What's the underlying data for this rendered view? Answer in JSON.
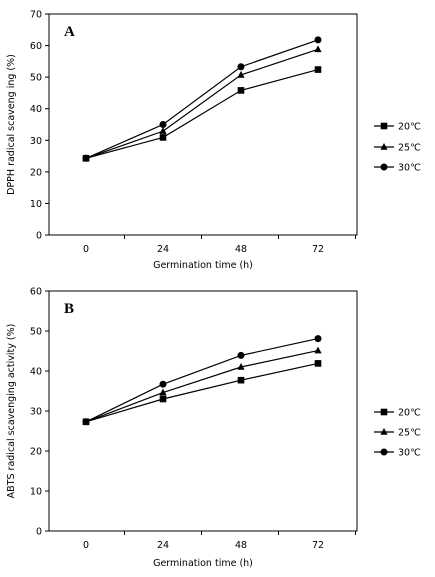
{
  "chart_data": [
    {
      "type": "line",
      "panel_label": "A",
      "xlabel": "Germination time (h)",
      "ylabel": "DPPH radical scaveng ing (%)",
      "x": [
        0,
        24,
        48,
        72
      ],
      "x_tick_labels": [
        "0",
        "24",
        "48",
        "72"
      ],
      "ylim": [
        0,
        70
      ],
      "y_ticks": [
        0,
        10,
        20,
        30,
        40,
        50,
        60,
        70
      ],
      "grid": false,
      "legend_placement": "right",
      "series": [
        {
          "name": "20℃",
          "marker": "square",
          "values": [
            24.3,
            30.9,
            45.8,
            52.4
          ]
        },
        {
          "name": "25℃",
          "marker": "triangle",
          "values": [
            24.3,
            32.9,
            50.7,
            58.8
          ]
        },
        {
          "name": "30℃",
          "marker": "circle",
          "values": [
            24.3,
            35.0,
            53.3,
            61.8
          ]
        }
      ]
    },
    {
      "type": "line",
      "panel_label": "B",
      "xlabel": "Germination time (h)",
      "ylabel": "ABTS radical scavenging activity (%)",
      "x": [
        0,
        24,
        48,
        72
      ],
      "x_tick_labels": [
        "0",
        "24",
        "48",
        "72"
      ],
      "ylim": [
        0,
        60
      ],
      "y_ticks": [
        0,
        10,
        20,
        30,
        40,
        50,
        60
      ],
      "grid": false,
      "legend_placement": "right",
      "series": [
        {
          "name": "20℃",
          "marker": "square",
          "values": [
            27.3,
            33.0,
            37.7,
            41.9
          ]
        },
        {
          "name": "25℃",
          "marker": "triangle",
          "values": [
            27.3,
            34.6,
            41.0,
            45.1
          ]
        },
        {
          "name": "30℃",
          "marker": "circle",
          "values": [
            27.3,
            36.7,
            43.9,
            48.1
          ]
        }
      ]
    }
  ]
}
